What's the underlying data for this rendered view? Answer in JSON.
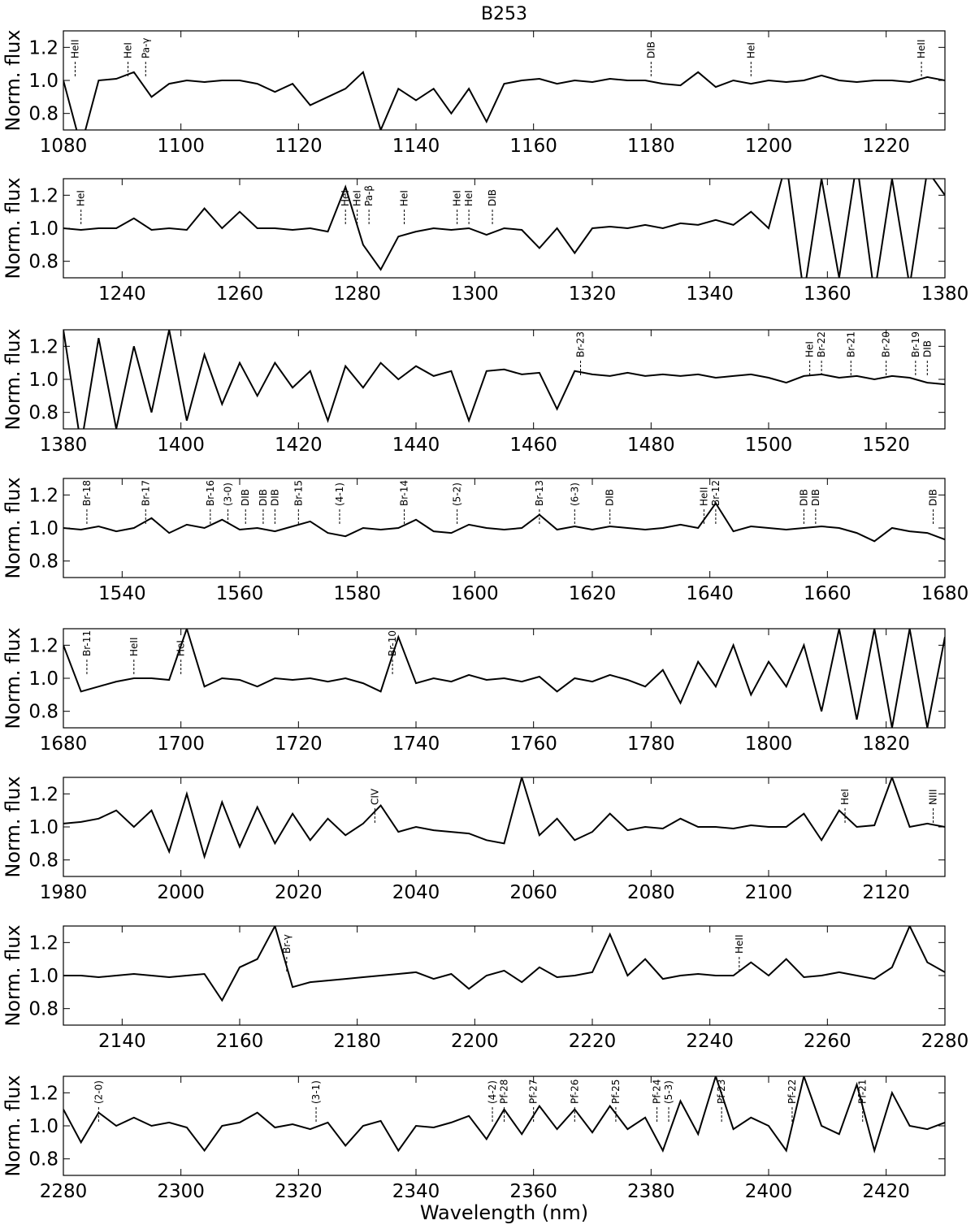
{
  "chart_data": [
    {
      "type": "line",
      "title": "B253",
      "ylabel": "Norm. flux",
      "x": [
        1080,
        1083,
        1086,
        1089,
        1092,
        1095,
        1098,
        1101,
        1104,
        1107,
        1110,
        1113,
        1116,
        1119,
        1122,
        1125,
        1128,
        1131,
        1134,
        1137,
        1140,
        1143,
        1146,
        1149,
        1152,
        1155,
        1158,
        1161,
        1164,
        1167,
        1170,
        1173,
        1176,
        1179,
        1182,
        1185,
        1188,
        1191,
        1194,
        1197,
        1200,
        1203,
        1206,
        1209,
        1212,
        1215,
        1218,
        1221,
        1224,
        1227,
        1230
      ],
      "color": "#000000",
      "values": [
        1.0,
        0.6,
        1.0,
        1.01,
        1.05,
        0.9,
        0.98,
        1.0,
        0.99,
        1.0,
        1.0,
        0.98,
        0.93,
        0.98,
        0.85,
        0.9,
        0.95,
        1.05,
        0.7,
        0.95,
        0.88,
        0.95,
        0.8,
        0.95,
        0.75,
        0.98,
        1.0,
        1.01,
        0.98,
        1.0,
        0.99,
        1.01,
        1.0,
        1.0,
        0.98,
        0.97,
        1.05,
        0.96,
        1.0,
        0.98,
        1.0,
        0.99,
        1.0,
        1.03,
        1.0,
        0.99,
        1.0,
        1.0,
        0.99,
        1.02,
        1.0
      ],
      "xlim": [
        1080,
        1230
      ],
      "xticks": [
        1080,
        1100,
        1120,
        1140,
        1160,
        1180,
        1200,
        1220
      ],
      "ylim": [
        0.7,
        1.3
      ],
      "yticks": [
        0.8,
        {
          "value": 1,
          "label": "1.0"
        },
        1.2
      ],
      "annotations": [
        {
          "text": "HeII",
          "x": 1082
        },
        {
          "text": "HeI",
          "x": 1091
        },
        {
          "text": "Pa-γ",
          "x": 1094
        },
        {
          "text": "DIB",
          "x": 1180
        },
        {
          "text": "HeI",
          "x": 1197
        },
        {
          "text": "HeII",
          "x": 1226
        }
      ]
    },
    {
      "type": "line",
      "ylabel": "Norm. flux",
      "x": [
        1230,
        1233,
        1236,
        1239,
        1242,
        1245,
        1248,
        1251,
        1254,
        1257,
        1260,
        1263,
        1266,
        1269,
        1272,
        1275,
        1278,
        1281,
        1284,
        1287,
        1290,
        1293,
        1296,
        1299,
        1302,
        1305,
        1308,
        1311,
        1314,
        1317,
        1320,
        1323,
        1326,
        1329,
        1332,
        1335,
        1338,
        1341,
        1344,
        1347,
        1350,
        1353,
        1356,
        1359,
        1362,
        1365,
        1368,
        1371,
        1374,
        1377,
        1380
      ],
      "color": "#000000",
      "values": [
        1.0,
        0.99,
        1.0,
        1.0,
        1.06,
        0.99,
        1.0,
        0.99,
        1.12,
        1.0,
        1.1,
        1.0,
        1.0,
        0.99,
        1.0,
        0.98,
        1.25,
        0.9,
        0.75,
        0.95,
        0.98,
        1.0,
        0.99,
        1.0,
        0.96,
        1.0,
        0.99,
        0.88,
        1.0,
        0.85,
        1.0,
        1.01,
        1.0,
        1.02,
        1.0,
        1.03,
        1.02,
        1.05,
        1.02,
        1.1,
        1.0,
        1.4,
        0.6,
        1.3,
        0.7,
        1.4,
        0.6,
        1.3,
        0.65,
        1.35,
        1.2
      ],
      "xlim": [
        1230,
        1380
      ],
      "xticks": [
        1240,
        1260,
        1280,
        1300,
        1320,
        1340,
        1360,
        1380
      ],
      "ylim": [
        0.7,
        1.3
      ],
      "yticks": [
        0.8,
        {
          "value": 1,
          "label": "1.0"
        },
        1.2
      ],
      "annotations": [
        {
          "text": "HeI",
          "x": 1233
        },
        {
          "text": "HeI",
          "x": 1278
        },
        {
          "text": "HeI",
          "x": 1280
        },
        {
          "text": "Pa-β",
          "x": 1282
        },
        {
          "text": "HeI",
          "x": 1288
        },
        {
          "text": "HeI",
          "x": 1297
        },
        {
          "text": "HeI",
          "x": 1299
        },
        {
          "text": "DIB",
          "x": 1303
        }
      ]
    },
    {
      "type": "line",
      "ylabel": "Norm. flux",
      "x": [
        1380,
        1383,
        1386,
        1389,
        1392,
        1395,
        1398,
        1401,
        1404,
        1407,
        1410,
        1413,
        1416,
        1419,
        1422,
        1425,
        1428,
        1431,
        1434,
        1437,
        1440,
        1443,
        1446,
        1449,
        1452,
        1455,
        1458,
        1461,
        1464,
        1467,
        1470,
        1473,
        1476,
        1479,
        1482,
        1485,
        1488,
        1491,
        1494,
        1497,
        1500,
        1503,
        1506,
        1509,
        1512,
        1515,
        1518,
        1521,
        1524,
        1527,
        1530
      ],
      "color": "#000000",
      "values": [
        1.3,
        0.6,
        1.25,
        0.7,
        1.2,
        0.8,
        1.3,
        0.75,
        1.15,
        0.85,
        1.1,
        0.9,
        1.1,
        0.95,
        1.05,
        0.75,
        1.08,
        0.95,
        1.1,
        1.0,
        1.08,
        1.02,
        1.05,
        0.75,
        1.05,
        1.06,
        1.03,
        1.04,
        0.82,
        1.05,
        1.03,
        1.02,
        1.04,
        1.02,
        1.03,
        1.02,
        1.03,
        1.01,
        1.02,
        1.03,
        1.01,
        0.98,
        1.02,
        1.03,
        1.01,
        1.02,
        1.0,
        1.02,
        1.01,
        0.98,
        0.97
      ],
      "xlim": [
        1380,
        1530
      ],
      "xticks": [
        1380,
        1400,
        1420,
        1440,
        1460,
        1480,
        1500,
        1520
      ],
      "ylim": [
        0.7,
        1.3
      ],
      "yticks": [
        0.8,
        {
          "value": 1,
          "label": "1.0"
        },
        1.2
      ],
      "annotations": [
        {
          "text": "Br-23",
          "x": 1468
        },
        {
          "text": "HeI",
          "x": 1507
        },
        {
          "text": "Br-22",
          "x": 1509
        },
        {
          "text": "Br-21",
          "x": 1514
        },
        {
          "text": "Br-20",
          "x": 1520
        },
        {
          "text": "Br-19",
          "x": 1525
        },
        {
          "text": "DIB",
          "x": 1527
        }
      ]
    },
    {
      "type": "line",
      "ylabel": "Norm. flux",
      "x": [
        1530,
        1533,
        1536,
        1539,
        1542,
        1545,
        1548,
        1551,
        1554,
        1557,
        1560,
        1563,
        1566,
        1569,
        1572,
        1575,
        1578,
        1581,
        1584,
        1587,
        1590,
        1593,
        1596,
        1599,
        1602,
        1605,
        1608,
        1611,
        1614,
        1617,
        1620,
        1623,
        1626,
        1629,
        1632,
        1635,
        1638,
        1641,
        1644,
        1647,
        1650,
        1653,
        1656,
        1659,
        1662,
        1665,
        1668,
        1671,
        1674,
        1677,
        1680
      ],
      "color": "#000000",
      "values": [
        1.0,
        0.99,
        1.01,
        0.98,
        1.0,
        1.06,
        0.97,
        1.02,
        1.0,
        1.05,
        0.99,
        1.0,
        0.98,
        1.01,
        1.04,
        0.97,
        0.95,
        1.0,
        0.99,
        1.0,
        1.05,
        0.98,
        0.97,
        1.02,
        1.0,
        0.99,
        1.0,
        1.08,
        0.99,
        1.01,
        0.99,
        1.01,
        1.0,
        0.99,
        1.0,
        1.02,
        1.0,
        1.15,
        0.98,
        1.01,
        1.0,
        0.99,
        1.0,
        1.01,
        1.0,
        0.97,
        0.92,
        1.0,
        0.98,
        0.97,
        0.93
      ],
      "xlim": [
        1530,
        1680
      ],
      "xticks": [
        1540,
        1560,
        1580,
        1600,
        1620,
        1640,
        1660,
        1680
      ],
      "ylim": [
        0.7,
        1.3
      ],
      "yticks": [
        0.8,
        {
          "value": 1,
          "label": "1.0"
        },
        1.2
      ],
      "annotations": [
        {
          "text": "Br-18",
          "x": 1534
        },
        {
          "text": "Br-17",
          "x": 1544
        },
        {
          "text": "Br-16",
          "x": 1555
        },
        {
          "text": "(3-0)",
          "x": 1558
        },
        {
          "text": "DIB",
          "x": 1561
        },
        {
          "text": "DIB",
          "x": 1564
        },
        {
          "text": "DIB",
          "x": 1566
        },
        {
          "text": "Br-15",
          "x": 1570
        },
        {
          "text": "(4-1)",
          "x": 1577
        },
        {
          "text": "Br-14",
          "x": 1588
        },
        {
          "text": "(5-2)",
          "x": 1597
        },
        {
          "text": "Br-13",
          "x": 1611
        },
        {
          "text": "(6-3)",
          "x": 1617
        },
        {
          "text": "DIB",
          "x": 1623
        },
        {
          "text": "HeII",
          "x": 1639
        },
        {
          "text": "Br-12",
          "x": 1641
        },
        {
          "text": "DIB",
          "x": 1656
        },
        {
          "text": "DIB",
          "x": 1658
        },
        {
          "text": "DIB",
          "x": 1678
        }
      ]
    },
    {
      "type": "line",
      "ylabel": "Norm. flux",
      "x": [
        1680,
        1683,
        1686,
        1689,
        1692,
        1695,
        1698,
        1701,
        1704,
        1707,
        1710,
        1713,
        1716,
        1719,
        1722,
        1725,
        1728,
        1731,
        1734,
        1737,
        1740,
        1743,
        1746,
        1749,
        1752,
        1755,
        1758,
        1761,
        1764,
        1767,
        1770,
        1773,
        1776,
        1779,
        1782,
        1785,
        1788,
        1791,
        1794,
        1797,
        1800,
        1803,
        1806,
        1809,
        1812,
        1815,
        1818,
        1821,
        1824,
        1827,
        1830
      ],
      "color": "#000000",
      "values": [
        1.2,
        0.92,
        0.95,
        0.98,
        1.0,
        1.0,
        0.99,
        1.3,
        0.95,
        1.0,
        0.99,
        0.95,
        1.0,
        0.99,
        1.0,
        0.98,
        1.0,
        0.97,
        0.92,
        1.25,
        0.97,
        1.0,
        0.98,
        1.02,
        0.99,
        1.0,
        0.98,
        1.01,
        0.92,
        1.0,
        0.98,
        1.02,
        0.99,
        0.95,
        1.05,
        0.85,
        1.1,
        0.95,
        1.2,
        0.9,
        1.1,
        0.95,
        1.2,
        0.8,
        1.3,
        0.75,
        1.3,
        0.7,
        1.3,
        0.7,
        1.25
      ],
      "xlim": [
        1680,
        1830
      ],
      "xticks": [
        1680,
        1700,
        1720,
        1740,
        1760,
        1780,
        1800,
        1820
      ],
      "ylim": [
        0.7,
        1.3
      ],
      "yticks": [
        0.8,
        {
          "value": 1,
          "label": "1.0"
        },
        1.2
      ],
      "annotations": [
        {
          "text": "Br-11",
          "x": 1684
        },
        {
          "text": "HeII",
          "x": 1692
        },
        {
          "text": "HeI",
          "x": 1700
        },
        {
          "text": "Br-10",
          "x": 1736
        }
      ]
    },
    {
      "type": "line",
      "ylabel": "Norm. flux",
      "x": [
        1980,
        1983,
        1986,
        1989,
        1992,
        1995,
        1998,
        2001,
        2004,
        2007,
        2010,
        2013,
        2016,
        2019,
        2022,
        2025,
        2028,
        2031,
        2034,
        2037,
        2040,
        2043,
        2046,
        2049,
        2052,
        2055,
        2058,
        2061,
        2064,
        2067,
        2070,
        2073,
        2076,
        2079,
        2082,
        2085,
        2088,
        2091,
        2094,
        2097,
        2100,
        2103,
        2106,
        2109,
        2112,
        2115,
        2118,
        2121,
        2124,
        2127,
        2130
      ],
      "color": "#000000",
      "values": [
        1.02,
        1.03,
        1.05,
        1.1,
        1.0,
        1.1,
        0.85,
        1.2,
        0.82,
        1.15,
        0.88,
        1.12,
        0.9,
        1.08,
        0.92,
        1.05,
        0.95,
        1.02,
        1.13,
        0.97,
        1.0,
        0.98,
        0.97,
        0.96,
        0.92,
        0.9,
        1.3,
        0.95,
        1.05,
        0.92,
        0.97,
        1.08,
        0.98,
        1.0,
        0.99,
        1.05,
        1.0,
        1.0,
        0.99,
        1.01,
        1.0,
        1.0,
        1.08,
        0.92,
        1.1,
        1.0,
        1.01,
        1.3,
        1.0,
        1.02,
        1.0
      ],
      "xlim": [
        1980,
        2130
      ],
      "xticks": [
        1980,
        2000,
        2020,
        2040,
        2060,
        2080,
        2100,
        2120
      ],
      "ylim": [
        0.7,
        1.3
      ],
      "yticks": [
        0.8,
        {
          "value": 1,
          "label": "1.0"
        },
        1.2
      ],
      "annotations": [
        {
          "text": "CIV",
          "x": 2033
        },
        {
          "text": "HeI",
          "x": 2113
        },
        {
          "text": "NIII",
          "x": 2128
        }
      ]
    },
    {
      "type": "line",
      "ylabel": "Norm. flux",
      "x": [
        2130,
        2133,
        2136,
        2139,
        2142,
        2145,
        2148,
        2151,
        2154,
        2157,
        2160,
        2163,
        2166,
        2169,
        2172,
        2175,
        2178,
        2181,
        2184,
        2187,
        2190,
        2193,
        2196,
        2199,
        2202,
        2205,
        2208,
        2211,
        2214,
        2217,
        2220,
        2223,
        2226,
        2229,
        2232,
        2235,
        2238,
        2241,
        2244,
        2247,
        2250,
        2253,
        2256,
        2259,
        2262,
        2265,
        2268,
        2271,
        2274,
        2277,
        2280
      ],
      "color": "#000000",
      "values": [
        1.0,
        1.0,
        0.99,
        1.0,
        1.01,
        1.0,
        0.99,
        1.0,
        1.01,
        0.85,
        1.05,
        1.1,
        1.3,
        0.93,
        0.96,
        0.97,
        0.98,
        0.99,
        1.0,
        1.01,
        1.02,
        0.98,
        1.01,
        0.92,
        1.0,
        1.03,
        0.96,
        1.05,
        0.99,
        1.0,
        1.02,
        1.25,
        1.0,
        1.1,
        0.98,
        1.0,
        1.01,
        1.0,
        1.0,
        1.08,
        1.0,
        1.1,
        0.99,
        1.0,
        1.02,
        1.0,
        0.98,
        1.05,
        1.3,
        1.08,
        1.02
      ],
      "xlim": [
        2130,
        2280
      ],
      "xticks": [
        2140,
        2160,
        2180,
        2200,
        2220,
        2240,
        2260,
        2280
      ],
      "ylim": [
        0.7,
        1.3
      ],
      "yticks": [
        0.8,
        {
          "value": 1,
          "label": "1.0"
        },
        1.2
      ],
      "annotations": [
        {
          "text": "Br-γ",
          "x": 2168
        },
        {
          "text": "HeII",
          "x": 2245
        }
      ]
    },
    {
      "type": "line",
      "ylabel": "Norm. flux",
      "xlabel": "Wavelength (nm)",
      "x": [
        2280,
        2283,
        2286,
        2289,
        2292,
        2295,
        2298,
        2301,
        2304,
        2307,
        2310,
        2313,
        2316,
        2319,
        2322,
        2325,
        2328,
        2331,
        2334,
        2337,
        2340,
        2343,
        2346,
        2349,
        2352,
        2355,
        2358,
        2361,
        2364,
        2367,
        2370,
        2373,
        2376,
        2379,
        2382,
        2385,
        2388,
        2391,
        2394,
        2397,
        2400,
        2403,
        2406,
        2409,
        2412,
        2415,
        2418,
        2421,
        2424,
        2427,
        2430
      ],
      "color": "#000000",
      "values": [
        1.1,
        0.9,
        1.08,
        1.0,
        1.05,
        1.0,
        1.02,
        0.99,
        0.85,
        1.0,
        1.02,
        1.08,
        0.99,
        1.01,
        0.98,
        1.02,
        0.88,
        1.0,
        1.03,
        0.85,
        1.0,
        0.99,
        1.02,
        1.06,
        0.92,
        1.1,
        0.95,
        1.12,
        0.98,
        1.1,
        0.96,
        1.12,
        0.98,
        1.05,
        0.85,
        1.15,
        0.95,
        1.3,
        0.98,
        1.05,
        1.0,
        0.85,
        1.3,
        1.0,
        0.95,
        1.25,
        0.85,
        1.2,
        1.0,
        0.98,
        1.02
      ],
      "xlim": [
        2280,
        2430
      ],
      "xticks": [
        2280,
        2300,
        2320,
        2340,
        2360,
        2380,
        2400,
        2420
      ],
      "ylim": [
        0.7,
        1.3
      ],
      "yticks": [
        0.8,
        {
          "value": 1,
          "label": "1.0"
        },
        1.2
      ],
      "annotations": [
        {
          "text": "(2-0)",
          "x": 2286
        },
        {
          "text": "(3-1)",
          "x": 2323
        },
        {
          "text": "(4-2)",
          "x": 2353
        },
        {
          "text": "Pf-28",
          "x": 2355
        },
        {
          "text": "Pf-27",
          "x": 2360
        },
        {
          "text": "Pf-26",
          "x": 2367
        },
        {
          "text": "Pf-25",
          "x": 2374
        },
        {
          "text": "Pf-24",
          "x": 2381
        },
        {
          "text": "(5-3)",
          "x": 2383
        },
        {
          "text": "Pf-23",
          "x": 2392
        },
        {
          "text": "Pf-22",
          "x": 2404
        },
        {
          "text": "Pf-21",
          "x": 2416
        }
      ]
    }
  ]
}
